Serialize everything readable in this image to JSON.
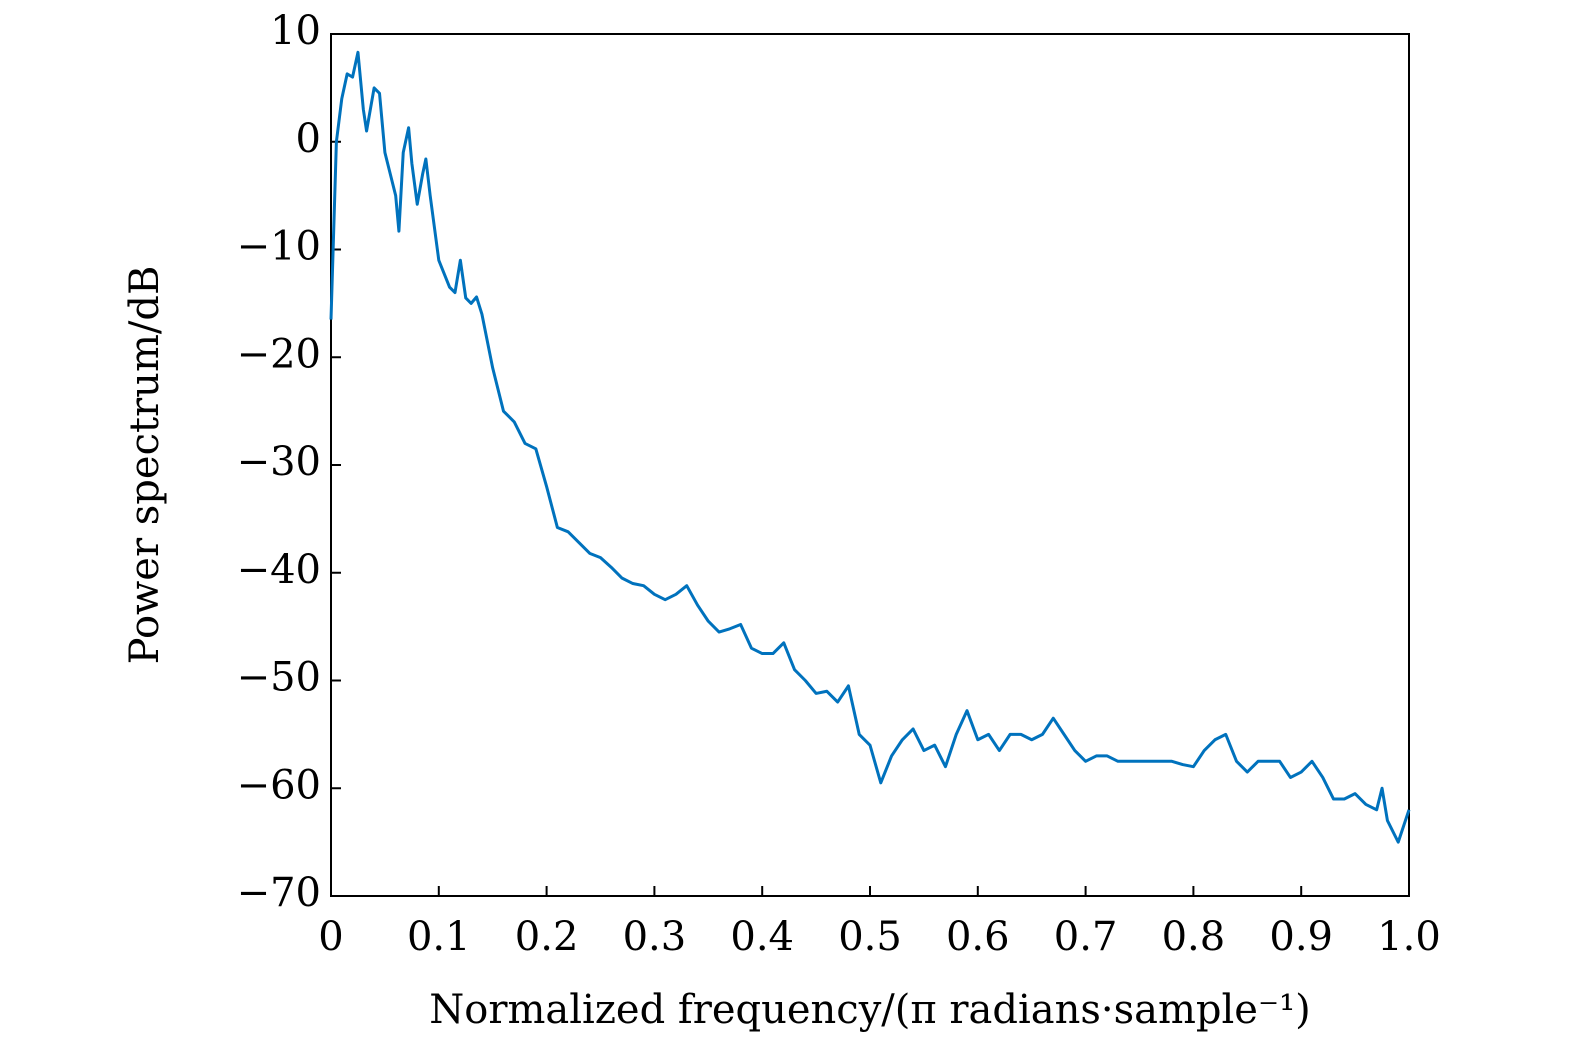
{
  "chart_data": {
    "type": "line",
    "xlabel": "Normalized frequency/(π radians·sample⁻¹)",
    "ylabel": "Power spectrum/dB",
    "xlim": [
      0,
      1
    ],
    "ylim": [
      -70,
      10
    ],
    "xticks": [
      0,
      0.1,
      0.2,
      0.3,
      0.4,
      0.5,
      0.6,
      0.7,
      0.8,
      0.9,
      {
        "value": 1,
        "label": "1.0"
      }
    ],
    "yticks": [
      {
        "value": -70,
        "label": "−70"
      },
      {
        "value": -60,
        "label": "−60"
      },
      {
        "value": -50,
        "label": "−50"
      },
      {
        "value": -40,
        "label": "−40"
      },
      {
        "value": -30,
        "label": "−30"
      },
      {
        "value": -20,
        "label": "−20"
      },
      {
        "value": -10,
        "label": "−10"
      },
      0,
      10
    ],
    "series": [
      {
        "color": "#0072bd",
        "x": [
          0,
          0.005,
          0.01,
          0.015,
          0.02,
          0.025,
          0.03,
          0.033,
          0.04,
          0.045,
          0.05,
          0.055,
          0.06,
          0.063,
          0.067,
          0.072,
          0.075,
          0.08,
          0.085,
          0.088,
          0.092,
          0.1,
          0.11,
          0.115,
          0.12,
          0.125,
          0.13,
          0.135,
          0.14,
          0.15,
          0.16,
          0.17,
          0.18,
          0.19,
          0.2,
          0.21,
          0.22,
          0.23,
          0.24,
          0.25,
          0.26,
          0.27,
          0.28,
          0.29,
          0.3,
          0.31,
          0.32,
          0.33,
          0.34,
          0.35,
          0.36,
          0.37,
          0.38,
          0.39,
          0.4,
          0.41,
          0.42,
          0.43,
          0.44,
          0.45,
          0.46,
          0.47,
          0.48,
          0.49,
          0.5,
          0.51,
          0.52,
          0.53,
          0.54,
          0.55,
          0.56,
          0.57,
          0.58,
          0.59,
          0.6,
          0.61,
          0.62,
          0.63,
          0.64,
          0.65,
          0.66,
          0.67,
          0.68,
          0.69,
          0.7,
          0.71,
          0.72,
          0.73,
          0.74,
          0.75,
          0.76,
          0.77,
          0.78,
          0.79,
          0.8,
          0.81,
          0.82,
          0.83,
          0.84,
          0.85,
          0.86,
          0.87,
          0.88,
          0.89,
          0.9,
          0.91,
          0.92,
          0.93,
          0.94,
          0.95,
          0.96,
          0.97,
          0.975,
          0.98,
          0.99,
          1.0
        ],
        "values": [
          -16.5,
          0,
          4,
          6.3,
          6,
          8.3,
          3,
          1,
          5,
          4.5,
          -1,
          -3,
          -5,
          -8.3,
          -1,
          1.3,
          -2,
          -5.8,
          -3,
          -1.6,
          -5,
          -11,
          -13.5,
          -14,
          -11,
          -14.5,
          -15,
          -14.4,
          -16,
          -21,
          -25,
          -26,
          -28,
          -28.5,
          -32,
          -35.8,
          -36.2,
          -37.2,
          -38.2,
          -38.6,
          -39.5,
          -40.5,
          -41,
          -41.2,
          -42,
          -42.5,
          -42,
          -41.2,
          -43,
          -44.5,
          -45.5,
          -45.2,
          -44.8,
          -47,
          -47.5,
          -47.5,
          -46.5,
          -49,
          -50,
          -51.2,
          -51,
          -52,
          -50.5,
          -55,
          -56,
          -59.5,
          -57,
          -55.5,
          -54.5,
          -56.5,
          -56,
          -58,
          -55,
          -52.8,
          -55.5,
          -55,
          -56.5,
          -55,
          -55,
          -55.5,
          -55,
          -53.5,
          -55,
          -56.5,
          -57.5,
          -57,
          -57,
          -57.5,
          -57.5,
          -57.5,
          -57.5,
          -57.5,
          -57.5,
          -57.8,
          -58,
          -56.5,
          -55.5,
          -55,
          -57.5,
          -58.5,
          -57.5,
          -57.5,
          -57.5,
          -59,
          -58.5,
          -57.5,
          -59,
          -61,
          -61,
          -60.5,
          -61.5,
          -62,
          -60,
          -63,
          -65,
          -62
        ]
      }
    ]
  }
}
